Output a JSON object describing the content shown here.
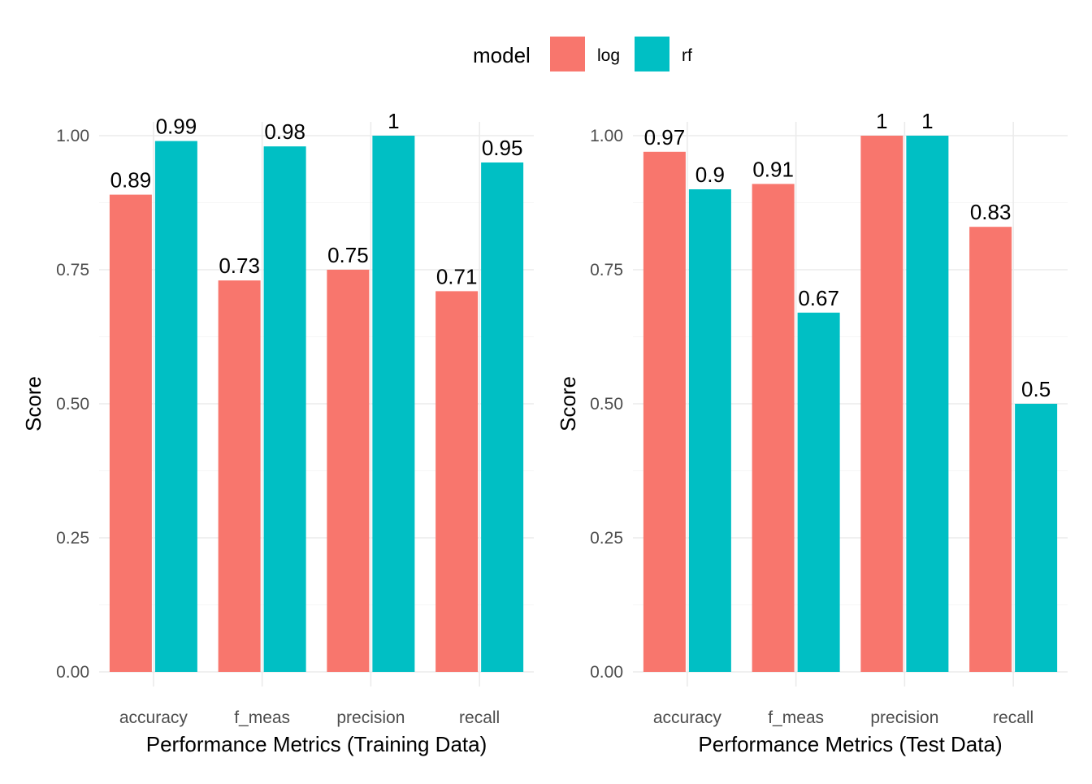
{
  "legend": {
    "title": "model",
    "items": [
      {
        "name": "log",
        "color": "#F8766D"
      },
      {
        "name": "rf",
        "color": "#00BFC4"
      }
    ]
  },
  "chart_data": [
    {
      "type": "bar",
      "categories": [
        "accuracy",
        "f_meas",
        "precision",
        "recall"
      ],
      "series": [
        {
          "name": "log",
          "color": "#F8766D",
          "values": [
            0.89,
            0.73,
            0.75,
            0.71
          ],
          "labels": [
            "0.89",
            "0.73",
            "0.75",
            "0.71"
          ]
        },
        {
          "name": "rf",
          "color": "#00BFC4",
          "values": [
            0.99,
            0.98,
            1,
            0.95
          ],
          "labels": [
            "0.99",
            "0.98",
            "1",
            "0.95"
          ]
        }
      ],
      "xlabel": "Performance Metrics (Training Data)",
      "ylabel": "Score",
      "ylim": [
        0,
        1
      ],
      "yticks": [
        "0.00",
        "0.25",
        "0.50",
        "0.75",
        "1.00"
      ],
      "grid": true,
      "legend_position": "top"
    },
    {
      "type": "bar",
      "categories": [
        "accuracy",
        "f_meas",
        "precision",
        "recall"
      ],
      "series": [
        {
          "name": "log",
          "color": "#F8766D",
          "values": [
            0.97,
            0.91,
            1,
            0.83
          ],
          "labels": [
            "0.97",
            "0.91",
            "1",
            "0.83"
          ]
        },
        {
          "name": "rf",
          "color": "#00BFC4",
          "values": [
            0.9,
            0.67,
            1,
            0.5
          ],
          "labels": [
            "0.9",
            "0.67",
            "1",
            "0.5"
          ]
        }
      ],
      "xlabel": "Performance Metrics (Test Data)",
      "ylabel": "Score",
      "ylim": [
        0,
        1
      ],
      "yticks": [
        "0.00",
        "0.25",
        "0.50",
        "0.75",
        "1.00"
      ],
      "grid": true,
      "legend_position": "top"
    }
  ]
}
